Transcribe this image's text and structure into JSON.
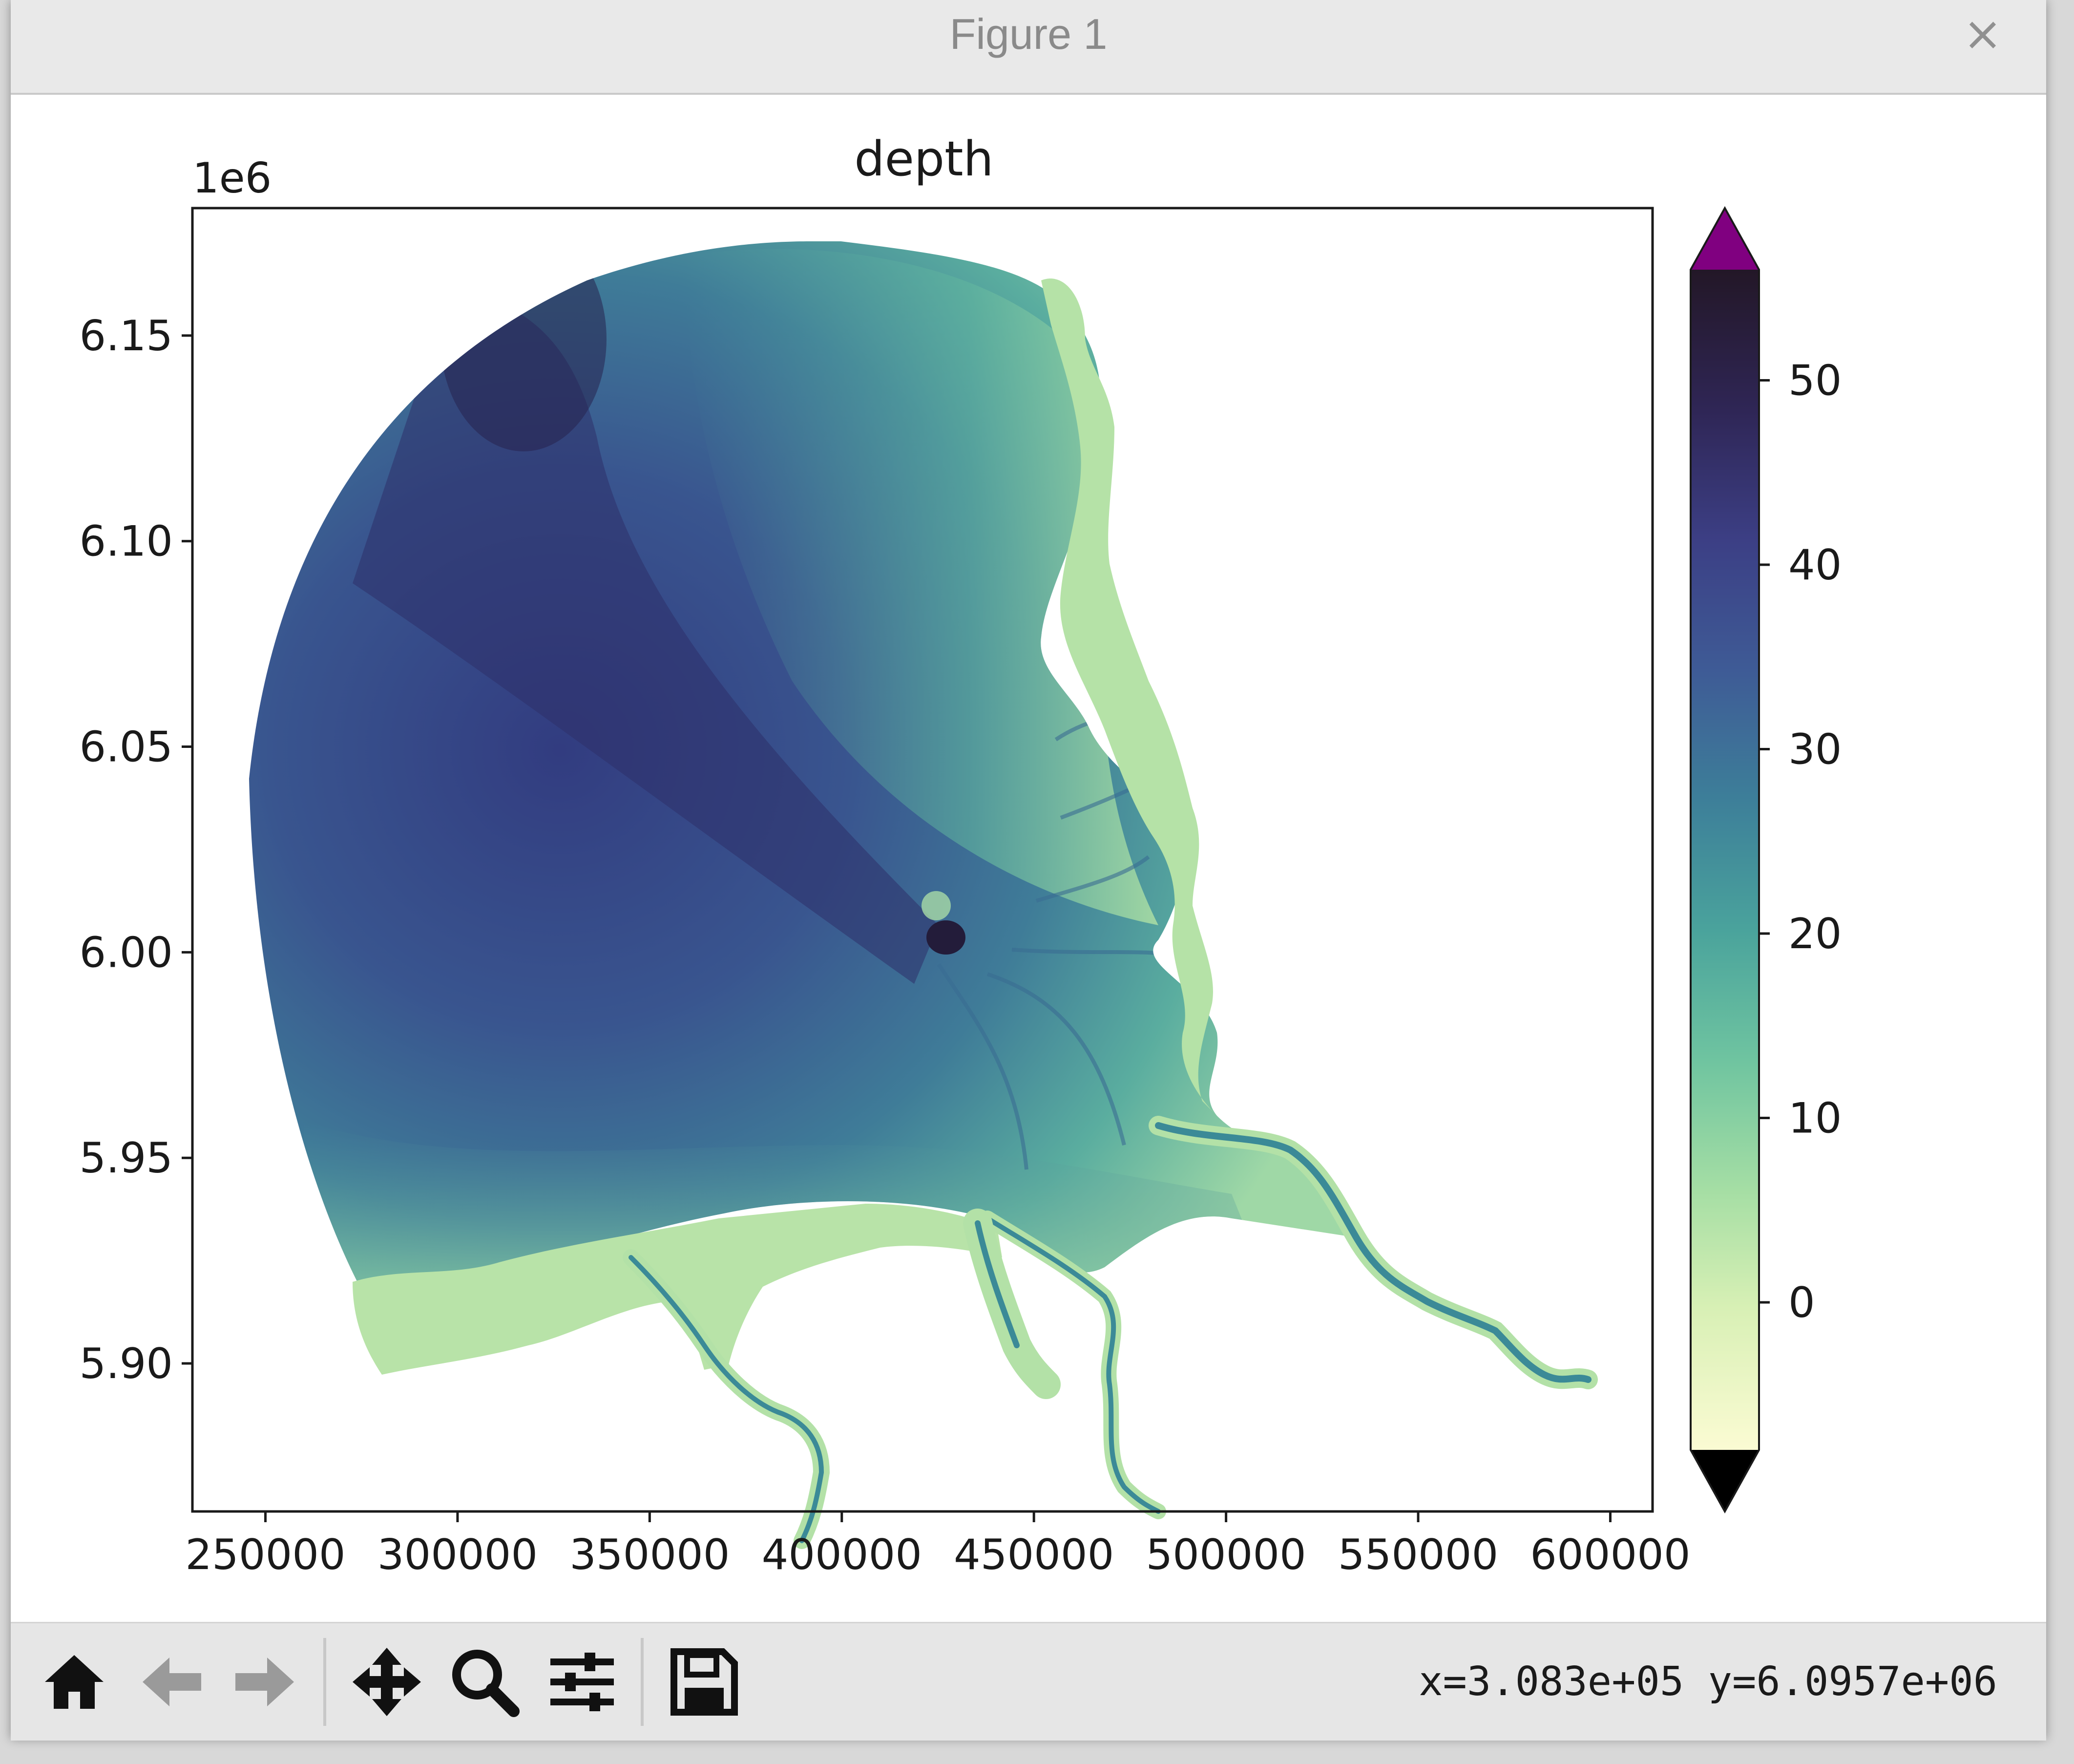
{
  "window": {
    "title": "Figure 1",
    "close_label": "×"
  },
  "toolbar": {
    "buttons": [
      {
        "name": "home-icon",
        "tooltip": "Reset original view"
      },
      {
        "name": "back-icon",
        "tooltip": "Back to previous view"
      },
      {
        "name": "forward-icon",
        "tooltip": "Forward to next view"
      },
      {
        "name": "pan-icon",
        "tooltip": "Pan axes"
      },
      {
        "name": "zoom-icon",
        "tooltip": "Zoom to rectangle"
      },
      {
        "name": "configure-icon",
        "tooltip": "Configure subplots"
      },
      {
        "name": "save-icon",
        "tooltip": "Save the figure"
      }
    ],
    "coords_text": "x=3.083e+05 y=6.0957e+06"
  },
  "chart_data": {
    "type": "heatmap",
    "title": "depth",
    "xlabel": "",
    "ylabel": "",
    "x_ticks": [
      250000,
      300000,
      350000,
      400000,
      450000,
      500000,
      550000,
      600000
    ],
    "x_tick_labels": [
      "250000",
      "300000",
      "350000",
      "400000",
      "450000",
      "500000",
      "550000",
      "600000"
    ],
    "y_ticks": [
      5.9,
      5.95,
      6.0,
      6.05,
      6.1,
      6.15
    ],
    "y_tick_labels": [
      "5.90",
      "5.95",
      "6.00",
      "6.05",
      "6.10",
      "6.15"
    ],
    "y_offset_label": "1e6",
    "xlim": [
      231000,
      611000
    ],
    "ylim": [
      5.864,
      6.181
    ],
    "colorbar": {
      "ticks": [
        0,
        10,
        20,
        30,
        40,
        50
      ],
      "tick_labels": [
        "0",
        "10",
        "20",
        "30",
        "40",
        "50"
      ],
      "vmin": -8,
      "vmax": 56,
      "extend": "both",
      "over_color": "#800080",
      "under_color": "#000000",
      "colormap": [
        "#fbfbd3",
        "#d8f0b5",
        "#a5dea4",
        "#6fc4a0",
        "#4aa39c",
        "#3d7f99",
        "#3e5b96",
        "#3c3f85",
        "#2f2656",
        "#231727"
      ]
    },
    "colors": {
      "deep": "#2f2a66",
      "mid_deep": "#3a4e92",
      "mid": "#3e7d98",
      "shallow": "#5fb7a0",
      "very_shallow": "#b8e3a8"
    }
  }
}
